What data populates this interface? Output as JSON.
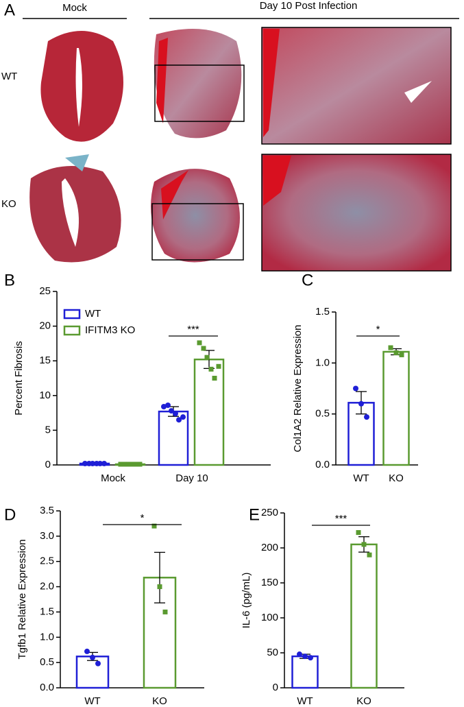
{
  "panel_a": {
    "label": "A",
    "mock": "Mock",
    "infection": "Day 10 Post Infection",
    "rows": [
      "WT",
      "KO"
    ]
  },
  "chart_data": [
    {
      "type": "bar",
      "panel": "B",
      "ylabel": "Percent Fibrosis",
      "categories": [
        "Mock",
        "Day 10"
      ],
      "series": [
        {
          "name": "WT",
          "color": "#1f1fd6",
          "marker": "circle",
          "values": [
            0.2,
            7.7
          ],
          "errors": [
            0.05,
            0.7
          ],
          "points": [
            [
              0.2,
              0.2,
              0.2,
              0.2,
              0.2,
              0.2
            ],
            [
              8.4,
              8.6,
              7.8,
              7.4,
              6.5,
              6.9
            ]
          ]
        },
        {
          "name": "IFITM3 KO",
          "color": "#5a9a30",
          "marker": "square",
          "values": [
            0.1,
            15.2
          ],
          "errors": [
            0.05,
            1.3
          ],
          "points": [
            [
              0.1,
              0.1,
              0.1,
              0.1,
              0.1,
              0.1
            ],
            [
              17.6,
              16.8,
              15.5,
              13.8,
              12.5,
              14.2
            ]
          ]
        }
      ],
      "ylim": [
        0,
        25
      ],
      "yticks": [
        0,
        5,
        10,
        15,
        20,
        25
      ],
      "significance": "***",
      "legend": "upper left"
    },
    {
      "type": "bar",
      "panel": "C",
      "ylabel": "Col1A2 Relative Expression",
      "categories": [
        "WT",
        "KO"
      ],
      "colors": [
        "#1f1fd6",
        "#5a9a30"
      ],
      "markers": [
        "circle",
        "square"
      ],
      "values": [
        0.61,
        1.11
      ],
      "errors": [
        0.11,
        0.03
      ],
      "points": [
        [
          0.75,
          0.6,
          0.47
        ],
        [
          1.15,
          1.1,
          1.08
        ]
      ],
      "ylim": [
        0,
        1.5
      ],
      "yticks": [
        {
          "value": 0,
          "label": "0.0"
        },
        0.5,
        {
          "value": 1,
          "label": "1.0"
        },
        1.5
      ],
      "significance": "*"
    },
    {
      "type": "bar",
      "panel": "D",
      "ylabel": "Tgfb1 Relative Expression",
      "categories": [
        "WT",
        "KO"
      ],
      "colors": [
        "#1f1fd6",
        "#5a9a30"
      ],
      "markers": [
        "circle",
        "square"
      ],
      "values": [
        0.62,
        2.18
      ],
      "errors": [
        0.08,
        0.5
      ],
      "points": [
        [
          0.72,
          0.6,
          0.48
        ],
        [
          3.2,
          2.0,
          1.5
        ]
      ],
      "ylim": [
        0,
        3.5
      ],
      "yticks": [
        {
          "value": 0,
          "label": "0.0"
        },
        0.5,
        {
          "value": 1,
          "label": "1.0"
        },
        1.5,
        {
          "value": 2,
          "label": "2.0"
        },
        2.5,
        {
          "value": 3,
          "label": "3.0"
        },
        3.5
      ],
      "significance": "*"
    },
    {
      "type": "bar",
      "panel": "E",
      "ylabel": "IL-6 (pg/mL)",
      "categories": [
        "WT",
        "KO"
      ],
      "colors": [
        "#1f1fd6",
        "#5a9a30"
      ],
      "markers": [
        "circle",
        "square"
      ],
      "values": [
        45,
        205
      ],
      "errors": [
        3,
        11
      ],
      "points": [
        [
          48,
          45,
          43
        ],
        [
          222,
          205,
          190
        ]
      ],
      "ylim": [
        0,
        250
      ],
      "yticks": [
        0,
        50,
        100,
        150,
        200,
        250
      ],
      "significance": "***"
    }
  ]
}
